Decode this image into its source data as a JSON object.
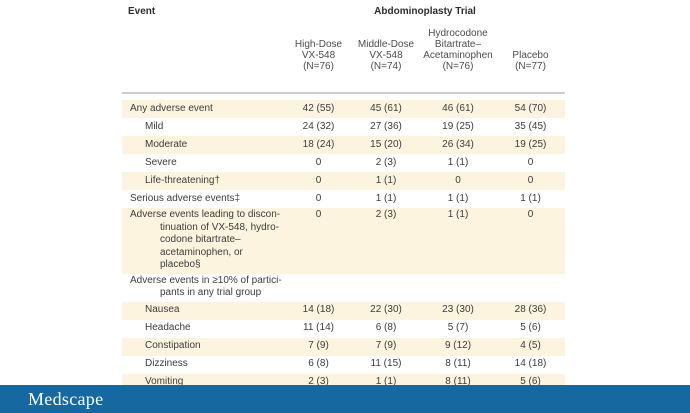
{
  "table": {
    "event_header": "Event",
    "trial_header": "Abdominoplasty Trial",
    "columns": [
      "High-Dose\nVX-548\n(N=76)",
      "Middle-Dose\nVX-548\n(N=74)",
      "Hydrocodone\nBitartrate–\nAcetaminophen\n(N=76)",
      "Placebo\n(N=77)"
    ],
    "rows": [
      {
        "label": "Any adverse event",
        "style": "plain",
        "shaded": true,
        "values": [
          "42 (55)",
          "45 (61)",
          "46 (61)",
          "54 (70)"
        ]
      },
      {
        "label": "Mild",
        "style": "indent",
        "shaded": false,
        "values": [
          "24 (32)",
          "27 (36)",
          "19 (25)",
          "35 (45)"
        ]
      },
      {
        "label": "Moderate",
        "style": "indent",
        "shaded": true,
        "values": [
          "18 (24)",
          "15 (20)",
          "26 (34)",
          "19 (25)"
        ]
      },
      {
        "label": "Severe",
        "style": "indent",
        "shaded": false,
        "values": [
          "0",
          "2 (3)",
          "1 (1)",
          "0"
        ]
      },
      {
        "label": "Life-threatening†",
        "style": "indent",
        "shaded": true,
        "values": [
          "0",
          "1 (1)",
          "0",
          "0"
        ]
      },
      {
        "label": "Serious adverse events‡",
        "style": "plain",
        "shaded": false,
        "values": [
          "0",
          "1 (1)",
          "1 (1)",
          "1 (1)"
        ]
      },
      {
        "label": "Adverse events leading to discon-\ntinuation of VX-548, hydro-\ncodone bitartrate–\nacetaminophen, or placebo§",
        "style": "hang",
        "shaded": true,
        "values": [
          "0",
          "2 (3)",
          "1 (1)",
          "0"
        ]
      },
      {
        "label": "Adverse events in ≥10% of partici-\npants in any trial group",
        "style": "hang",
        "shaded": false,
        "values": [
          "",
          "",
          "",
          ""
        ]
      },
      {
        "label": "Nausea",
        "style": "indent",
        "shaded": true,
        "values": [
          "14 (18)",
          "22 (30)",
          "23 (30)",
          "28 (36)"
        ]
      },
      {
        "label": "Headache",
        "style": "indent",
        "shaded": false,
        "values": [
          "11 (14)",
          "6 (8)",
          "5 (7)",
          "5 (6)"
        ]
      },
      {
        "label": "Constipation",
        "style": "indent",
        "shaded": true,
        "values": [
          "7 (9)",
          "7 (9)",
          "9 (12)",
          "4 (5)"
        ]
      },
      {
        "label": "Dizziness",
        "style": "indent",
        "shaded": false,
        "values": [
          "6 (8)",
          "11 (15)",
          "8 (11)",
          "14 (18)"
        ]
      },
      {
        "label": "Vomiting",
        "style": "indent",
        "shaded": true,
        "values": [
          "2 (3)",
          "1 (1)",
          "8 (11)",
          "5 (6)"
        ]
      }
    ]
  },
  "footer": {
    "brand": "Medscape"
  },
  "colors": {
    "row_shade": "#fcf4df",
    "footer_blue": "#1569a0",
    "rule_gray": "#cdcdcd",
    "text": "#3c3c3c"
  },
  "chart_data": {
    "type": "table",
    "title": "Abdominoplasty Trial",
    "columns": [
      "Event",
      "High-Dose VX-548 (N=76)",
      "Middle-Dose VX-548 (N=74)",
      "Hydrocodone Bitartrate–Acetaminophen (N=76)",
      "Placebo (N=77)"
    ],
    "rows": [
      [
        "Any adverse event",
        "42 (55)",
        "45 (61)",
        "46 (61)",
        "54 (70)"
      ],
      [
        "Mild",
        "24 (32)",
        "27 (36)",
        "19 (25)",
        "35 (45)"
      ],
      [
        "Moderate",
        "18 (24)",
        "15 (20)",
        "26 (34)",
        "19 (25)"
      ],
      [
        "Severe",
        "0",
        "2 (3)",
        "1 (1)",
        "0"
      ],
      [
        "Life-threatening†",
        "0",
        "1 (1)",
        "0",
        "0"
      ],
      [
        "Serious adverse events‡",
        "0",
        "1 (1)",
        "1 (1)",
        "1 (1)"
      ],
      [
        "Adverse events leading to discontinuation of VX-548, hydrocodone bitartrate–acetaminophen, or placebo§",
        "0",
        "2 (3)",
        "1 (1)",
        "0"
      ],
      [
        "Adverse events in ≥10% of participants in any trial group",
        "",
        "",
        "",
        ""
      ],
      [
        "Nausea",
        "14 (18)",
        "22 (30)",
        "23 (30)",
        "28 (36)"
      ],
      [
        "Headache",
        "11 (14)",
        "6 (8)",
        "5 (7)",
        "5 (6)"
      ],
      [
        "Constipation",
        "7 (9)",
        "7 (9)",
        "9 (12)",
        "4 (5)"
      ],
      [
        "Dizziness",
        "6 (8)",
        "11 (15)",
        "8 (11)",
        "14 (18)"
      ],
      [
        "Vomiting",
        "2 (3)",
        "1 (1)",
        "8 (11)",
        "5 (6)"
      ]
    ]
  }
}
